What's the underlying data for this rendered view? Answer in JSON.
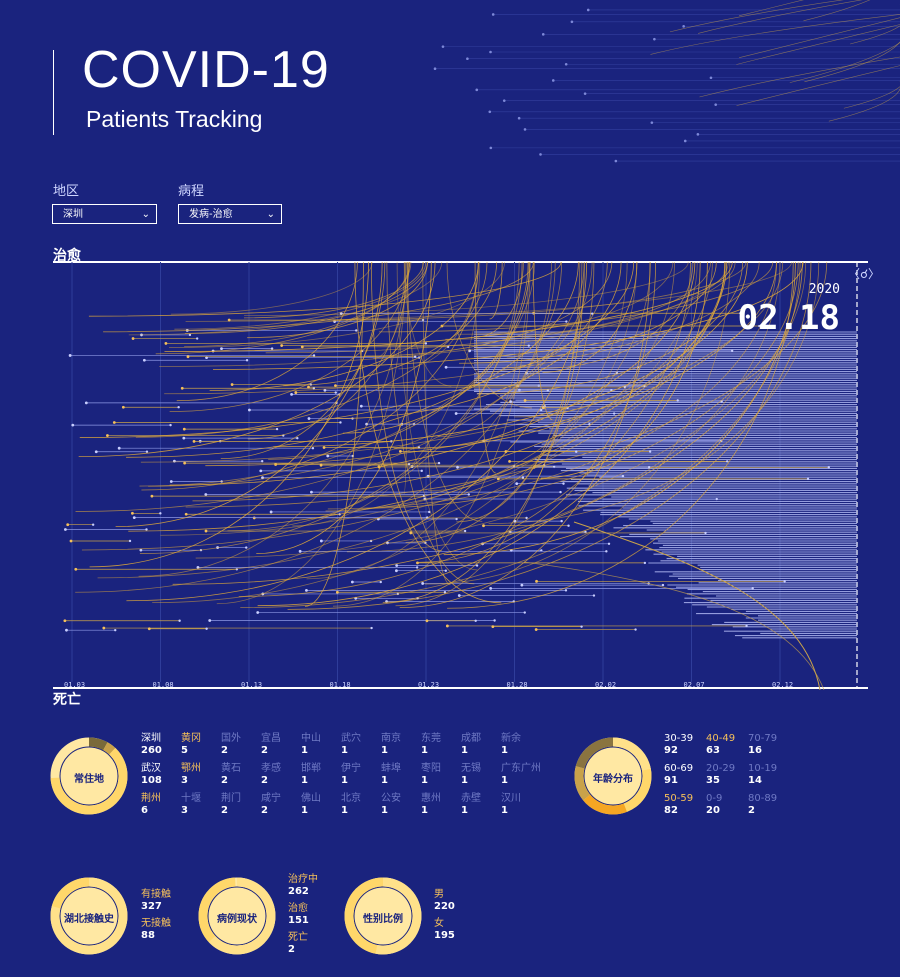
{
  "header": {
    "title": "COVID-19",
    "subtitle": "Patients Tracking"
  },
  "filters": {
    "region": {
      "label": "地区",
      "value": "深圳"
    },
    "course": {
      "label": "病程",
      "value": "发病-治愈"
    }
  },
  "sections": {
    "top": "治愈",
    "bottom": "死亡"
  },
  "date": {
    "year": "2020",
    "day": "02.18"
  },
  "timeline": {
    "ticks": [
      "01.03",
      "01.08",
      "01.13",
      "01.18",
      "01.23",
      "01.28",
      "02.02",
      "02.07",
      "02.12"
    ]
  },
  "residence": {
    "title": "常住地",
    "items": [
      {
        "name": "深圳",
        "count": "260",
        "tone": "white"
      },
      {
        "name": "黄冈",
        "count": "5",
        "tone": "gold"
      },
      {
        "name": "国外",
        "count": "2",
        "tone": "dim"
      },
      {
        "name": "宜昌",
        "count": "2",
        "tone": "dim"
      },
      {
        "name": "中山",
        "count": "1",
        "tone": "dim"
      },
      {
        "name": "武穴",
        "count": "1",
        "tone": "dim"
      },
      {
        "name": "南京",
        "count": "1",
        "tone": "dim"
      },
      {
        "name": "东莞",
        "count": "1",
        "tone": "dim"
      },
      {
        "name": "成都",
        "count": "1",
        "tone": "dim"
      },
      {
        "name": "新余",
        "count": "1",
        "tone": "dim"
      },
      {
        "name": "武汉",
        "count": "108",
        "tone": "white"
      },
      {
        "name": "鄂州",
        "count": "3",
        "tone": "gold"
      },
      {
        "name": "黄石",
        "count": "2",
        "tone": "dim"
      },
      {
        "name": "孝感",
        "count": "2",
        "tone": "dim"
      },
      {
        "name": "邯郸",
        "count": "1",
        "tone": "dim"
      },
      {
        "name": "伊宁",
        "count": "1",
        "tone": "dim"
      },
      {
        "name": "蚌埠",
        "count": "1",
        "tone": "dim"
      },
      {
        "name": "枣阳",
        "count": "1",
        "tone": "dim"
      },
      {
        "name": "无锡",
        "count": "1",
        "tone": "dim"
      },
      {
        "name": "广东广州",
        "count": "1",
        "tone": "dim"
      },
      {
        "name": "荆州",
        "count": "6",
        "tone": "gold"
      },
      {
        "name": "十堰",
        "count": "3",
        "tone": "dim"
      },
      {
        "name": "荆门",
        "count": "2",
        "tone": "dim"
      },
      {
        "name": "咸宁",
        "count": "2",
        "tone": "dim"
      },
      {
        "name": "佛山",
        "count": "1",
        "tone": "dim"
      },
      {
        "name": "北京",
        "count": "1",
        "tone": "dim"
      },
      {
        "name": "公安",
        "count": "1",
        "tone": "dim"
      },
      {
        "name": "惠州",
        "count": "1",
        "tone": "dim"
      },
      {
        "name": "赤壁",
        "count": "1",
        "tone": "dim"
      },
      {
        "name": "汉川",
        "count": "1",
        "tone": "dim"
      }
    ]
  },
  "age": {
    "title": "年龄分布",
    "items": [
      {
        "name": "30-39",
        "count": "92",
        "tone": "white"
      },
      {
        "name": "40-49",
        "count": "63",
        "tone": "gold"
      },
      {
        "name": "70-79",
        "count": "16",
        "tone": "dim"
      },
      {
        "name": "60-69",
        "count": "91",
        "tone": "white"
      },
      {
        "name": "20-29",
        "count": "35",
        "tone": "dim"
      },
      {
        "name": "10-19",
        "count": "14",
        "tone": "dim"
      },
      {
        "name": "50-59",
        "count": "82",
        "tone": "gold"
      },
      {
        "name": "0-9",
        "count": "20",
        "tone": "dim"
      },
      {
        "name": "80-89",
        "count": "2",
        "tone": "dim"
      }
    ]
  },
  "hubei": {
    "title": "湖北接触史",
    "items": [
      {
        "name": "有接触",
        "count": "327"
      },
      {
        "name": "无接触",
        "count": "88"
      }
    ]
  },
  "status": {
    "title": "病例现状",
    "items": [
      {
        "name": "治疗中",
        "count": "262"
      },
      {
        "name": "治愈",
        "count": "151"
      },
      {
        "name": "死亡",
        "count": "2"
      }
    ]
  },
  "gender": {
    "title": "性别比例",
    "items": [
      {
        "name": "男",
        "count": "220"
      },
      {
        "name": "女",
        "count": "195"
      }
    ]
  },
  "colors": {
    "background": "#1a237e",
    "gold": "#f5c05a",
    "lightgold": "#ffe8a3",
    "line": "#8e98e6"
  }
}
